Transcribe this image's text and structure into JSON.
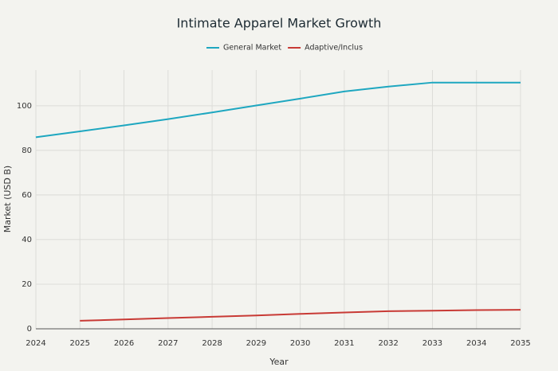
{
  "chart_data": {
    "type": "line",
    "title": "Intimate Apparel Market Growth",
    "x_label": "Year",
    "y_label": "Market (USD B)",
    "x": [
      2024,
      2025,
      2026,
      2027,
      2028,
      2029,
      2030,
      2031,
      2032,
      2033,
      2034,
      2035
    ],
    "series": [
      {
        "name": "General Market",
        "color": "#1ea7c0",
        "values": [
          85.9,
          88.5,
          91.2,
          94.0,
          97.0,
          100.1,
          103.2,
          106.4,
          108.6,
          110.4,
          110.4,
          110.4
        ]
      },
      {
        "name": "Adaptive/Inclus",
        "color": "#c83a35",
        "values": [
          null,
          3.6,
          4.2,
          4.8,
          5.4,
          6.0,
          6.7,
          7.3,
          7.9,
          8.1,
          8.4,
          8.5
        ]
      }
    ],
    "xlim": [
      2024,
      2035
    ],
    "xticks": [
      2024,
      2025,
      2026,
      2027,
      2028,
      2029,
      2030,
      2031,
      2032,
      2033,
      2034,
      2035
    ],
    "ylim": [
      0,
      116
    ],
    "yticks": [
      0,
      20,
      40,
      60,
      80,
      100
    ],
    "grid": true
  }
}
